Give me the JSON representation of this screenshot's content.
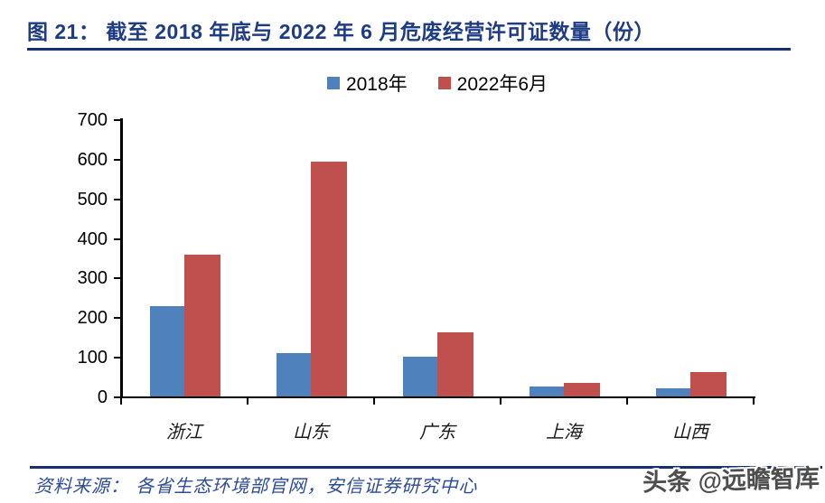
{
  "figure": {
    "title": "图 21： 截至 2018 年底与 2022 年 6 月危废经营许可证数量（份）"
  },
  "chart_data": {
    "type": "bar",
    "title": "截至 2018 年底与 2022 年 6 月危废经营许可证数量（份）",
    "categories": [
      "浙江",
      "山东",
      "广东",
      "上海",
      "山西"
    ],
    "series": [
      {
        "name": "2018年",
        "color": "#4f81bd",
        "values": [
          228,
          110,
          101,
          25,
          20
        ]
      },
      {
        "name": "2022年6月",
        "color": "#c0504d",
        "values": [
          358,
          593,
          161,
          35,
          62
        ]
      }
    ],
    "xlabel": "",
    "ylabel": "",
    "ylim": [
      0,
      700
    ],
    "ytick_step": 100,
    "grid": false,
    "legend_position": "top-center",
    "colors": {
      "series_2018": "#4f81bd",
      "series_2022_06": "#c0504d",
      "title_navy": "#1d3c85",
      "rule_navy": "#162f6e",
      "source_blue": "#2d4b9b",
      "axis_black": "#000000"
    }
  },
  "footer": {
    "source": "资料来源： 各省生态环境部官网，安信证券研究中心",
    "watermark": "头条 @远瞻智库"
  }
}
